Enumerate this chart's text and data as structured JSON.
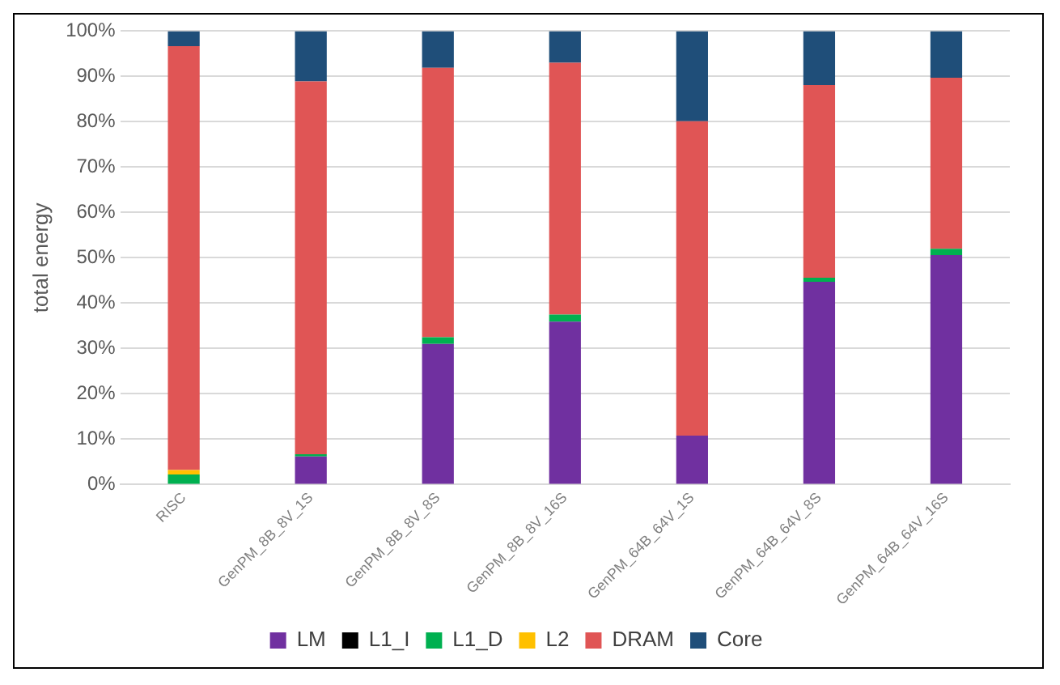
{
  "chart_data": {
    "type": "bar",
    "stacked": true,
    "ylabel": "total energy",
    "categories": [
      "RISC",
      "GenPM_8B_8V_1S",
      "GenPM_8B_8V_8S",
      "GenPM_8B_8V_16S",
      "GenPM_64B_64V_1S",
      "GenPM_64B_64V_8S",
      "GenPM_64B_64V_16S"
    ],
    "series": [
      {
        "name": "LM",
        "color": "#7030a0",
        "values": [
          0,
          6.2,
          31,
          35.9,
          10.8,
          44.7,
          50.6
        ]
      },
      {
        "name": "L1_I",
        "color": "#000000",
        "values": [
          0,
          0,
          0,
          0,
          0,
          0,
          0
        ]
      },
      {
        "name": "L1_D",
        "color": "#00b050",
        "values": [
          2.2,
          0.5,
          1.5,
          1.6,
          0,
          0.9,
          1.4
        ]
      },
      {
        "name": "L2",
        "color": "#ffc000",
        "values": [
          1,
          0,
          0,
          0,
          0,
          0,
          0
        ]
      },
      {
        "name": "DRAM",
        "color": "#e05555",
        "values": [
          93.5,
          82.2,
          59.4,
          55.5,
          69.3,
          42.5,
          37.7
        ]
      },
      {
        "name": "Core",
        "color": "#1f4e79",
        "values": [
          3.3,
          11.1,
          8.1,
          7,
          19.9,
          11.9,
          10.3
        ]
      }
    ],
    "ylim": [
      0,
      100
    ],
    "yticks": [
      {
        "value": 0,
        "label": "0%"
      },
      {
        "value": 10,
        "label": "10%"
      },
      {
        "value": 20,
        "label": "20%"
      },
      {
        "value": 30,
        "label": "30%"
      },
      {
        "value": 40,
        "label": "40%"
      },
      {
        "value": 50,
        "label": "50%"
      },
      {
        "value": 60,
        "label": "60%"
      },
      {
        "value": 70,
        "label": "70%"
      },
      {
        "value": 80,
        "label": "80%"
      },
      {
        "value": 90,
        "label": "90%"
      },
      {
        "value": 100,
        "label": "100%"
      }
    ],
    "grid": "y",
    "legend": "bottom"
  }
}
